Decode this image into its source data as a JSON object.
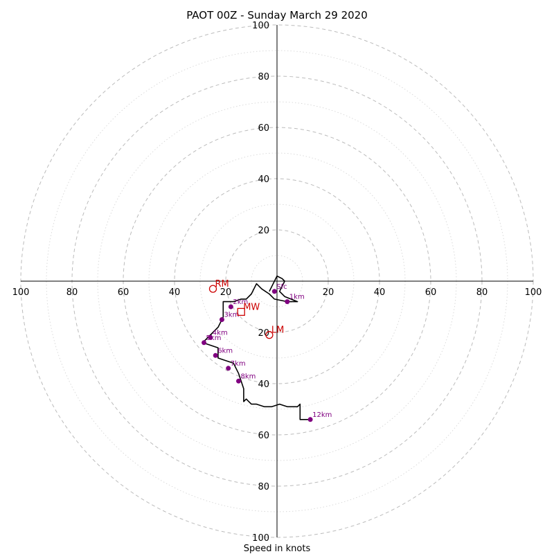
{
  "chart_data": {
    "type": "hodograph",
    "title": "PAOT 00Z - Sunday March 29 2020",
    "xlabel": "Speed in knots",
    "range": [
      -100,
      100
    ],
    "ring_spacing_dashed": 20,
    "ring_spacing_dotted": 10,
    "tick_labels_x": [
      "100",
      "80",
      "60",
      "40",
      "20",
      "20",
      "40",
      "60",
      "80",
      "100"
    ],
    "tick_labels_y": [
      "100",
      "80",
      "60",
      "40",
      "20",
      "20",
      "40",
      "60",
      "80",
      "100"
    ],
    "tick_values": [
      -100,
      -80,
      -60,
      -40,
      -20,
      20,
      40,
      60,
      80,
      100
    ],
    "colors": {
      "trace": "#000000",
      "height_marker": "#800080",
      "storm_motion": "#cc0000",
      "grid": "#bbbbbb"
    },
    "trace": [
      [
        -3,
        -4
      ],
      [
        0,
        2
      ],
      [
        2,
        1
      ],
      [
        3,
        0
      ],
      [
        2,
        -2
      ],
      [
        1,
        -4
      ],
      [
        3,
        -6
      ],
      [
        8,
        -8
      ],
      [
        4,
        -8
      ],
      [
        -1,
        -7
      ],
      [
        -3,
        -5
      ],
      [
        -6,
        -3
      ],
      [
        -8,
        -1
      ],
      [
        -10,
        -5
      ],
      [
        -12,
        -7
      ],
      [
        -14,
        -7
      ],
      [
        -17,
        -8
      ],
      [
        -21,
        -8
      ],
      [
        -21,
        -10
      ],
      [
        -21,
        -12
      ],
      [
        -21,
        -14
      ],
      [
        -22,
        -16
      ],
      [
        -23,
        -18
      ],
      [
        -25,
        -20
      ],
      [
        -27,
        -22
      ],
      [
        -29,
        -24
      ],
      [
        -26,
        -25
      ],
      [
        -23,
        -26
      ],
      [
        -23,
        -28
      ],
      [
        -23,
        -30
      ],
      [
        -20,
        -31
      ],
      [
        -17,
        -32
      ],
      [
        -16,
        -34
      ],
      [
        -15,
        -36
      ],
      [
        -14,
        -39
      ],
      [
        -13,
        -42
      ],
      [
        -13,
        -45
      ],
      [
        -13,
        -47
      ],
      [
        -12,
        -46
      ],
      [
        -11,
        -47
      ],
      [
        -10,
        -48
      ],
      [
        -8,
        -48
      ],
      [
        -5,
        -49
      ],
      [
        -2,
        -49
      ],
      [
        1,
        -48
      ],
      [
        4,
        -49
      ],
      [
        8,
        -49
      ],
      [
        9,
        -48
      ],
      [
        9,
        -54
      ],
      [
        10,
        -54
      ],
      [
        13,
        -54
      ]
    ],
    "height_markers": [
      {
        "label": "Sfc",
        "u": -1,
        "v": -4
      },
      {
        "label": "1km",
        "u": 4,
        "v": -8
      },
      {
        "label": "2km",
        "u": -18,
        "v": -10
      },
      {
        "label": "3km",
        "u": -21.5,
        "v": -15
      },
      {
        "label": "4km",
        "u": -26,
        "v": -22
      },
      {
        "label": "5km",
        "u": -28.5,
        "v": -24
      },
      {
        "label": "6km",
        "u": -24,
        "v": -29
      },
      {
        "label": "7km",
        "u": -19,
        "v": -34
      },
      {
        "label": "8km",
        "u": -15,
        "v": -39
      },
      {
        "label": "12km",
        "u": 13,
        "v": -54
      }
    ],
    "storm_motion": [
      {
        "label": "RM",
        "u": -25,
        "v": -3,
        "marker": "circle"
      },
      {
        "label": "MW",
        "u": -14,
        "v": -12,
        "marker": "square"
      },
      {
        "label": "LM",
        "u": -3,
        "v": -21,
        "marker": "circle"
      }
    ]
  }
}
